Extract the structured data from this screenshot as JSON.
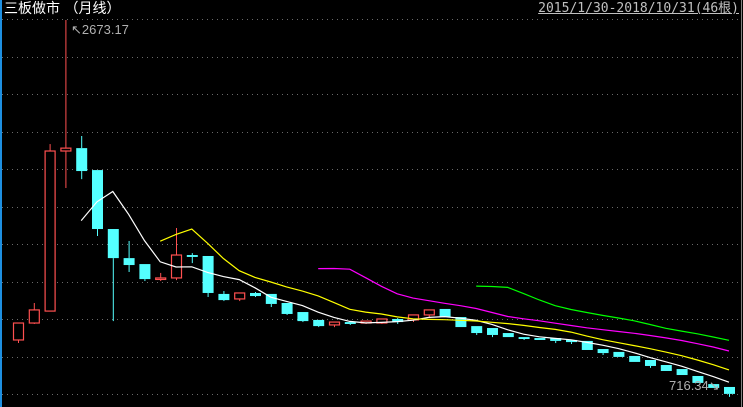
{
  "header": {
    "title": "三板做市 （月线）",
    "date_range": "2015/1/30-2018/10/31(46根)"
  },
  "annotations": {
    "high_label": "2673.17",
    "low_label": "716.34"
  },
  "colors": {
    "up": "#ff5050",
    "down": "#54ffff",
    "grid": "#6a6a6a",
    "background": "#000000"
  },
  "chart_data": {
    "type": "candlestick",
    "title": "三板做市 （月线）",
    "x_range": "2015/1/30-2018/10/31",
    "count": 46,
    "ylim": [
      664,
      2777
    ],
    "grid": true,
    "max_marker": 2673.17,
    "min_marker": 716.34,
    "ohlc": [
      [
        1012,
        1100,
        996,
        1100
      ],
      [
        1100,
        1204,
        1095,
        1168
      ],
      [
        1162,
        2029,
        1162,
        1993
      ],
      [
        1993,
        2673.17,
        1801,
        2008
      ],
      [
        2008,
        2071,
        1847,
        1889
      ],
      [
        1894,
        1894,
        1552,
        1588
      ],
      [
        1588,
        1588,
        1110,
        1437
      ],
      [
        1437,
        1526,
        1365,
        1401
      ],
      [
        1406,
        1406,
        1318,
        1328
      ],
      [
        1328,
        1360,
        1318,
        1334
      ],
      [
        1334,
        1593,
        1323,
        1453
      ],
      [
        1453,
        1463,
        1411,
        1443
      ],
      [
        1448,
        1448,
        1235,
        1256
      ],
      [
        1251,
        1266,
        1214,
        1219
      ],
      [
        1225,
        1256,
        1214,
        1256
      ],
      [
        1256,
        1261,
        1235,
        1240
      ],
      [
        1251,
        1251,
        1183,
        1199
      ],
      [
        1204,
        1204,
        1142,
        1147
      ],
      [
        1157,
        1157,
        1105,
        1110
      ],
      [
        1116,
        1116,
        1079,
        1084
      ],
      [
        1090,
        1105,
        1079,
        1105
      ],
      [
        1105,
        1105,
        1090,
        1095
      ],
      [
        1100,
        1110,
        1095,
        1110
      ],
      [
        1100,
        1121,
        1095,
        1121
      ],
      [
        1121,
        1126,
        1095,
        1105
      ],
      [
        1116,
        1142,
        1105,
        1142
      ],
      [
        1142,
        1168,
        1131,
        1168
      ],
      [
        1173,
        1173,
        1131,
        1131
      ],
      [
        1131,
        1131,
        1079,
        1079
      ],
      [
        1084,
        1084,
        1038,
        1048
      ],
      [
        1074,
        1074,
        1027,
        1038
      ],
      [
        1048,
        1048,
        1027,
        1027
      ],
      [
        1027,
        1027,
        1012,
        1017
      ],
      [
        1022,
        1022,
        1012,
        1012
      ],
      [
        1022,
        1022,
        996,
        1007
      ],
      [
        1012,
        1012,
        991,
        1001
      ],
      [
        1007,
        1007,
        960,
        960
      ],
      [
        965,
        965,
        934,
        944
      ],
      [
        950,
        950,
        924,
        924
      ],
      [
        929,
        929,
        898,
        898
      ],
      [
        908,
        908,
        867,
        877
      ],
      [
        882,
        882,
        851,
        851
      ],
      [
        861,
        861,
        830,
        830
      ],
      [
        825,
        825,
        789,
        789
      ],
      [
        783,
        783,
        763,
        763
      ],
      [
        768,
        768,
        716.34,
        732
      ]
    ],
    "moving_averages": [
      {
        "period": 5,
        "color": "#ffffff"
      },
      {
        "period": 10,
        "color": "#ffff00"
      },
      {
        "period": 20,
        "color": "#ff00ff"
      },
      {
        "period": 30,
        "color": "#00ff00"
      }
    ]
  }
}
